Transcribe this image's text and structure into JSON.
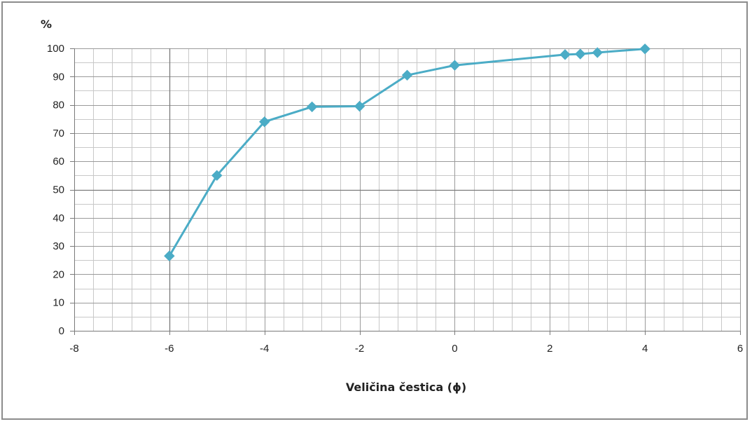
{
  "chart_data": {
    "type": "scatter",
    "xlabel": "Veličina čestica (ϕ)",
    "ylabel": "%",
    "xlim": [
      -8,
      6
    ],
    "ylim": [
      0,
      100
    ],
    "xticks": [
      -8,
      -6,
      -4,
      -2,
      0,
      2,
      4,
      6
    ],
    "yticks": [
      0,
      10,
      20,
      30,
      40,
      50,
      60,
      70,
      80,
      90,
      100
    ],
    "grid": true,
    "legend": "none",
    "line_color": "#4bacc6",
    "series": [
      {
        "x": [
          -6,
          -5,
          -4,
          -3,
          -2,
          -1,
          0,
          2.32,
          2.64,
          3,
          4
        ],
        "y": [
          26.5,
          55,
          74,
          79.3,
          79.5,
          90.5,
          94,
          97.8,
          98,
          98.5,
          99.8
        ]
      }
    ]
  }
}
